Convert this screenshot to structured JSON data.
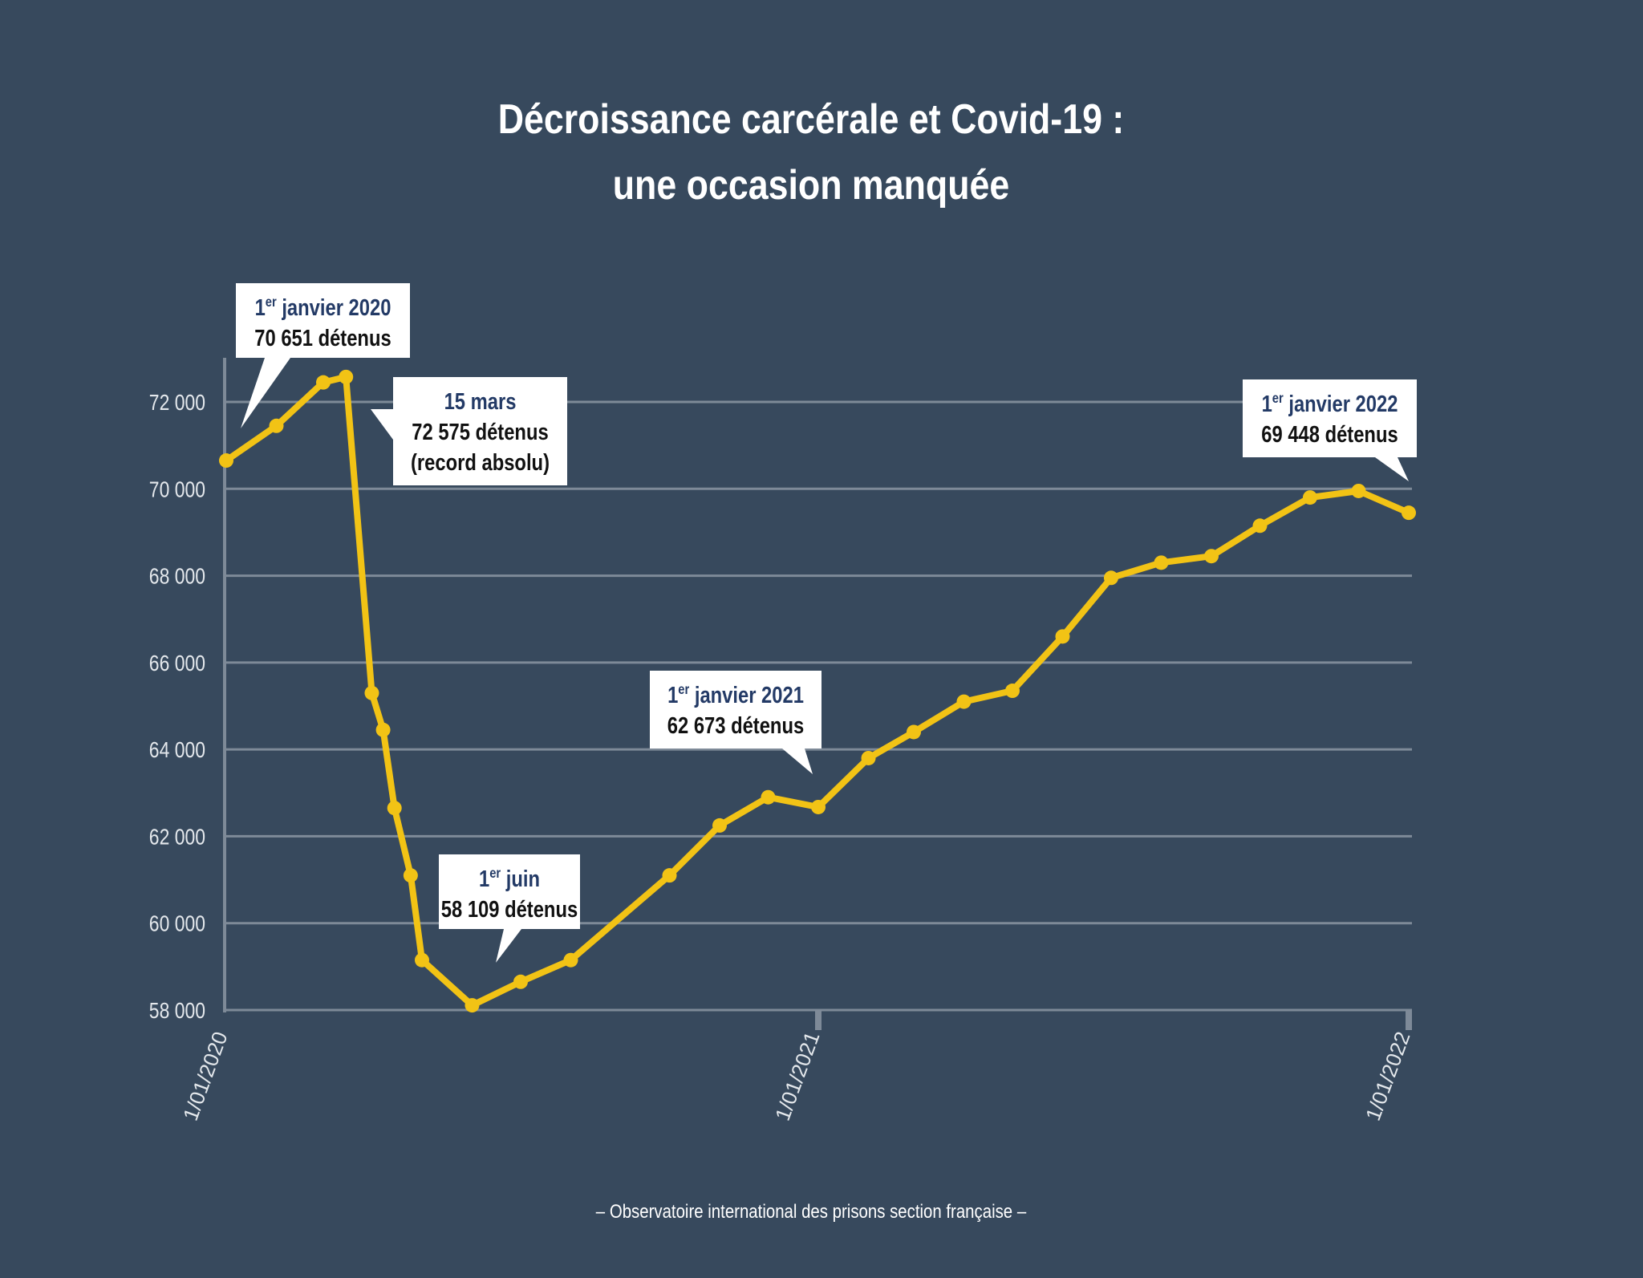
{
  "title": {
    "line1": "Décroissance carcérale et Covid-19 :",
    "line2": "une occasion manquée"
  },
  "source": "– Observatoire international des prisons section française –",
  "colors": {
    "background": "#37495d",
    "line": "#f2c315",
    "grid": "#7e8a98",
    "axis_text": "#e4e8ec",
    "callout_bg": "#ffffff",
    "callout_date": "#233a66",
    "callout_value": "#111111"
  },
  "chart_data": {
    "type": "line",
    "title": "Décroissance carcérale et Covid-19 : une occasion manquée",
    "xlabel": "",
    "ylabel": "",
    "ylim": [
      58000,
      73000
    ],
    "yticks": [
      58000,
      60000,
      62000,
      64000,
      66000,
      68000,
      70000,
      72000
    ],
    "ytick_labels": [
      "58 000",
      "60 000",
      "62 000",
      "64 000",
      "66 000",
      "68 000",
      "70 000",
      "72 000"
    ],
    "xlim": [
      "2020-01-01",
      "2022-01-01"
    ],
    "xticks": [
      "2020-01-01",
      "2021-01-01",
      "2022-01-01"
    ],
    "xtick_labels": [
      "1/01/2020",
      "1/01/2021",
      "1/01/2022"
    ],
    "grid": true,
    "series": [
      {
        "points": [
          {
            "x": "2020-01-01",
            "y": 70651
          },
          {
            "x": "2020-02-01",
            "y": 71450
          },
          {
            "x": "2020-03-01",
            "y": 72450
          },
          {
            "x": "2020-03-15",
            "y": 72575
          },
          {
            "x": "2020-03-31",
            "y": 65300
          },
          {
            "x": "2020-04-07",
            "y": 64450
          },
          {
            "x": "2020-04-14",
            "y": 62650
          },
          {
            "x": "2020-04-24",
            "y": 61100
          },
          {
            "x": "2020-05-01",
            "y": 59150
          },
          {
            "x": "2020-06-01",
            "y": 58109
          },
          {
            "x": "2020-07-01",
            "y": 58650
          },
          {
            "x": "2020-08-01",
            "y": 59150
          },
          {
            "x": "2020-10-01",
            "y": 61100
          },
          {
            "x": "2020-11-01",
            "y": 62250
          },
          {
            "x": "2020-12-01",
            "y": 62900
          },
          {
            "x": "2021-01-01",
            "y": 62673
          },
          {
            "x": "2021-02-01",
            "y": 63800
          },
          {
            "x": "2021-03-01",
            "y": 64400
          },
          {
            "x": "2021-04-01",
            "y": 65100
          },
          {
            "x": "2021-05-01",
            "y": 65350
          },
          {
            "x": "2021-06-01",
            "y": 66600
          },
          {
            "x": "2021-07-01",
            "y": 67950
          },
          {
            "x": "2021-08-01",
            "y": 68300
          },
          {
            "x": "2021-09-01",
            "y": 68450
          },
          {
            "x": "2021-10-01",
            "y": 69150
          },
          {
            "x": "2021-11-01",
            "y": 69800
          },
          {
            "x": "2021-12-01",
            "y": 69950
          },
          {
            "x": "2022-01-01",
            "y": 69448
          }
        ]
      }
    ],
    "annotations": [
      {
        "date_num": "1",
        "date_sup": "er",
        "date_text": " janvier 2020",
        "value_text": "70 651 détenus",
        "extra_text": ""
      },
      {
        "date_num": "15 mars",
        "date_sup": "",
        "date_text": "",
        "value_text": "72 575 détenus",
        "extra_text": "(record absolu)"
      },
      {
        "date_num": "1",
        "date_sup": "er",
        "date_text": " juin",
        "value_text": "58 109 détenus",
        "extra_text": ""
      },
      {
        "date_num": "1",
        "date_sup": "er",
        "date_text": " janvier 2021",
        "value_text": "62 673 détenus",
        "extra_text": ""
      },
      {
        "date_num": "1",
        "date_sup": "er",
        "date_text": " janvier 2022",
        "value_text": "69 448 détenus",
        "extra_text": ""
      }
    ]
  }
}
